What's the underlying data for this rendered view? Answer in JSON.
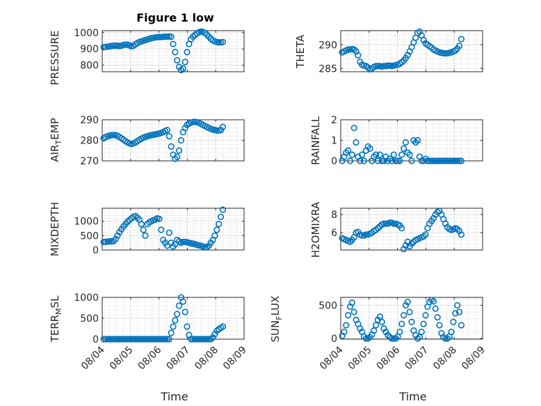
{
  "title": "Figure 1 low",
  "marker_color": "#0072bd",
  "chart_data": [
    {
      "type": "scatter",
      "ylabel": "PRESSURE",
      "yticks": [
        800,
        900,
        1000
      ],
      "ylim": [
        760,
        1012
      ],
      "xlim": [
        "08/04",
        "08/09"
      ],
      "x": [
        0.05,
        0.12,
        0.19,
        0.26,
        0.33,
        0.4,
        0.47,
        0.54,
        0.61,
        0.68,
        0.75,
        0.82,
        0.89,
        0.96,
        1.03,
        1.1,
        1.17,
        1.24,
        1.31,
        1.38,
        1.45,
        1.52,
        1.59,
        1.66,
        1.73,
        1.8,
        1.87,
        1.94,
        2.01,
        2.08,
        2.15,
        2.22,
        2.29,
        2.36,
        2.43,
        2.5,
        2.57,
        2.64,
        2.71,
        2.78,
        2.85,
        2.92,
        2.99,
        3.06,
        3.13,
        3.2,
        3.27,
        3.34,
        3.41,
        3.48,
        3.55,
        3.62,
        3.69,
        3.76,
        3.83,
        3.9,
        3.97,
        4.04,
        4.11,
        4.18,
        4.25
      ],
      "y": [
        910,
        912,
        914,
        916,
        918,
        920,
        920,
        919,
        918,
        920,
        924,
        926,
        926,
        922,
        916,
        920,
        928,
        936,
        942,
        946,
        950,
        954,
        958,
        962,
        966,
        968,
        970,
        972,
        973,
        972,
        974,
        975,
        975,
        976,
        974,
        930,
        880,
        830,
        790,
        770,
        780,
        820,
        880,
        930,
        960,
        975,
        985,
        995,
        1002,
        1006,
        1004,
        998,
        988,
        975,
        962,
        952,
        946,
        942,
        940,
        940,
        942
      ]
    },
    {
      "type": "scatter",
      "ylabel": "THETA",
      "yticks": [
        285,
        290
      ],
      "ylim": [
        284.3,
        293
      ],
      "xlim": [
        "08/04",
        "08/09"
      ],
      "x": [
        0.05,
        0.12,
        0.19,
        0.26,
        0.33,
        0.4,
        0.47,
        0.54,
        0.61,
        0.68,
        0.75,
        0.82,
        0.89,
        0.96,
        1.03,
        1.1,
        1.17,
        1.24,
        1.31,
        1.38,
        1.45,
        1.52,
        1.59,
        1.66,
        1.73,
        1.8,
        1.87,
        1.94,
        2.01,
        2.08,
        2.15,
        2.22,
        2.29,
        2.36,
        2.43,
        2.5,
        2.57,
        2.64,
        2.71,
        2.78,
        2.85,
        2.92,
        2.99,
        3.06,
        3.13,
        3.2,
        3.27,
        3.34,
        3.41,
        3.48,
        3.55,
        3.62,
        3.69,
        3.76,
        3.83,
        3.9,
        3.97,
        4.04,
        4.11,
        4.18,
        4.25
      ],
      "y": [
        288.4,
        288.6,
        288.8,
        289.0,
        289.0,
        289.1,
        289.0,
        288.6,
        287.8,
        286.4,
        285.8,
        285.6,
        285.5,
        285.2,
        284.8,
        285.0,
        285.3,
        285.5,
        285.5,
        285.5,
        285.4,
        285.5,
        285.5,
        285.6,
        285.6,
        285.5,
        285.6,
        285.7,
        285.8,
        286.0,
        286.3,
        286.7,
        287.2,
        287.8,
        288.6,
        289.5,
        290.5,
        291.5,
        292.5,
        292.8,
        292.0,
        291.0,
        290.3,
        290.0,
        289.7,
        289.4,
        289.0,
        288.8,
        288.6,
        288.4,
        288.3,
        288.2,
        288.2,
        288.2,
        288.3,
        288.4,
        288.6,
        288.8,
        289.2,
        289.8,
        291.2
      ]
    },
    {
      "type": "scatter",
      "ylabel": "AIR_TEMP",
      "yticks": [
        270,
        280,
        290
      ],
      "ylim": [
        270,
        290
      ],
      "xlim": [
        "08/04",
        "08/09"
      ],
      "x": [
        0.05,
        0.12,
        0.19,
        0.26,
        0.33,
        0.4,
        0.47,
        0.54,
        0.61,
        0.68,
        0.75,
        0.82,
        0.89,
        0.96,
        1.03,
        1.1,
        1.17,
        1.24,
        1.31,
        1.38,
        1.45,
        1.52,
        1.59,
        1.66,
        1.73,
        1.8,
        1.87,
        1.94,
        2.01,
        2.08,
        2.15,
        2.22,
        2.29,
        2.36,
        2.43,
        2.5,
        2.57,
        2.64,
        2.71,
        2.78,
        2.85,
        2.92,
        2.99,
        3.06,
        3.13,
        3.2,
        3.27,
        3.34,
        3.41,
        3.48,
        3.55,
        3.62,
        3.69,
        3.76,
        3.83,
        3.9,
        3.97,
        4.04,
        4.11,
        4.18,
        4.25
      ],
      "y": [
        281.0,
        281.6,
        282.0,
        282.3,
        282.5,
        282.6,
        282.5,
        282.2,
        281.6,
        281.0,
        280.3,
        279.6,
        279.0,
        278.5,
        278.2,
        278.5,
        279.0,
        279.6,
        280.2,
        280.8,
        281.3,
        281.7,
        282.0,
        282.3,
        282.5,
        282.7,
        282.9,
        283.1,
        283.3,
        283.6,
        284.0,
        284.5,
        285.0,
        282.0,
        277.0,
        273.0,
        271.0,
        272.0,
        275.0,
        280.0,
        284.0,
        286.0,
        287.5,
        288.2,
        288.6,
        288.9,
        289.0,
        288.8,
        288.5,
        288.0,
        287.5,
        287.0,
        286.5,
        286.0,
        285.6,
        285.2,
        285.0,
        284.8,
        284.8,
        285.0,
        286.5
      ]
    },
    {
      "type": "scatter",
      "ylabel": "RAINFALL",
      "yticks": [
        0,
        1,
        2
      ],
      "ylim": [
        0,
        2
      ],
      "xlim": [
        "08/04",
        "08/09"
      ],
      "x": [
        0.05,
        0.12,
        0.19,
        0.26,
        0.33,
        0.4,
        0.47,
        0.54,
        0.61,
        0.68,
        0.75,
        0.82,
        0.89,
        0.96,
        1.03,
        1.1,
        1.17,
        1.24,
        1.31,
        1.38,
        1.45,
        1.52,
        1.59,
        1.66,
        1.73,
        1.8,
        1.87,
        1.94,
        2.01,
        2.08,
        2.15,
        2.22,
        2.29,
        2.36,
        2.43,
        2.5,
        2.57,
        2.64,
        2.71,
        2.78,
        2.85,
        2.92,
        2.99,
        3.06,
        3.13,
        3.2,
        3.27,
        3.34,
        3.41,
        3.48,
        3.55,
        3.62,
        3.69,
        3.76,
        3.83,
        3.9,
        3.97,
        4.04,
        4.11,
        4.18,
        4.25
      ],
      "y": [
        0,
        0.2,
        0.4,
        0.5,
        0,
        0.3,
        1.6,
        0.9,
        0.2,
        0,
        0.3,
        0,
        0.5,
        0.7,
        0.6,
        0,
        0.2,
        0.3,
        0,
        0.3,
        0,
        0,
        0.2,
        0,
        0.1,
        0,
        0.3,
        0,
        0,
        0,
        0.3,
        0.6,
        0.9,
        0.4,
        0.3,
        0,
        1.0,
        0.9,
        1.0,
        0.2,
        0,
        0,
        0.1,
        0,
        0,
        0,
        0,
        0,
        0,
        0,
        0,
        0,
        0,
        0,
        0,
        0,
        0,
        0,
        0,
        0,
        0
      ]
    },
    {
      "type": "scatter",
      "ylabel": "MIXDEPTH",
      "yticks": [
        0,
        500,
        1000
      ],
      "ylim": [
        0,
        1450
      ],
      "xlim": [
        "08/04",
        "08/09"
      ],
      "x": [
        0.05,
        0.12,
        0.19,
        0.26,
        0.33,
        0.4,
        0.47,
        0.54,
        0.61,
        0.68,
        0.75,
        0.82,
        0.89,
        0.96,
        1.03,
        1.1,
        1.17,
        1.24,
        1.31,
        1.38,
        1.45,
        1.52,
        1.59,
        1.66,
        1.73,
        1.8,
        1.87,
        1.94,
        2.01,
        2.08,
        2.15,
        2.22,
        2.29,
        2.36,
        2.43,
        2.5,
        2.57,
        2.64,
        2.71,
        2.78,
        2.85,
        2.92,
        2.99,
        3.06,
        3.13,
        3.2,
        3.27,
        3.34,
        3.41,
        3.48,
        3.55,
        3.62,
        3.69,
        3.76,
        3.83,
        3.9,
        3.97,
        4.04,
        4.11,
        4.18,
        4.25
      ],
      "y": [
        280,
        280,
        290,
        300,
        300,
        310,
        380,
        500,
        620,
        720,
        820,
        900,
        980,
        1040,
        1100,
        1150,
        1180,
        1120,
        1050,
        900,
        700,
        500,
        900,
        960,
        1000,
        1030,
        1060,
        1100,
        1080,
        700,
        350,
        250,
        150,
        600,
        250,
        120,
        200,
        350,
        300,
        250,
        280,
        280,
        270,
        250,
        230,
        220,
        200,
        180,
        160,
        150,
        120,
        100,
        90,
        150,
        250,
        350,
        500,
        700,
        900,
        1150,
        1400
      ]
    },
    {
      "type": "scatter",
      "ylabel": "H2OMIXRA",
      "yticks": [
        6,
        8
      ],
      "ylim": [
        4.1,
        8.7
      ],
      "xlim": [
        "08/04",
        "08/09"
      ],
      "x": [
        0.05,
        0.12,
        0.19,
        0.26,
        0.33,
        0.4,
        0.47,
        0.54,
        0.61,
        0.68,
        0.75,
        0.82,
        0.89,
        0.96,
        1.03,
        1.1,
        1.17,
        1.24,
        1.31,
        1.38,
        1.45,
        1.52,
        1.59,
        1.66,
        1.73,
        1.8,
        1.87,
        1.94,
        2.01,
        2.08,
        2.15,
        2.22,
        2.29,
        2.36,
        2.43,
        2.5,
        2.57,
        2.64,
        2.71,
        2.78,
        2.85,
        2.92,
        2.99,
        3.06,
        3.13,
        3.2,
        3.27,
        3.34,
        3.41,
        3.48,
        3.55,
        3.62,
        3.69,
        3.76,
        3.83,
        3.9,
        3.97,
        4.04,
        4.11,
        4.18,
        4.25
      ],
      "y": [
        5.4,
        5.3,
        5.2,
        5.1,
        5.0,
        5.2,
        5.5,
        6.0,
        6.1,
        5.8,
        5.7,
        5.7,
        5.8,
        5.8,
        5.9,
        6.0,
        6.2,
        6.3,
        6.5,
        6.7,
        6.9,
        7.0,
        7.0,
        7.0,
        7.1,
        7.1,
        7.0,
        7.0,
        6.9,
        6.8,
        6.5,
        4.2,
        4.6,
        5.0,
        4.5,
        4.8,
        5.0,
        5.2,
        5.3,
        5.4,
        5.5,
        5.6,
        5.8,
        6.5,
        7.0,
        7.3,
        7.6,
        8.0,
        8.3,
        8.4,
        8.0,
        7.5,
        7.0,
        6.6,
        6.4,
        6.3,
        6.4,
        6.5,
        6.4,
        6.2,
        5.8
      ]
    },
    {
      "type": "scatter",
      "ylabel": "TERR_MSL",
      "yticks": [
        0,
        500,
        1000
      ],
      "ylim": [
        0,
        1000
      ],
      "xlim": [
        "08/04",
        "08/09"
      ],
      "x": [
        0.05,
        0.12,
        0.19,
        0.26,
        0.33,
        0.4,
        0.47,
        0.54,
        0.61,
        0.68,
        0.75,
        0.82,
        0.89,
        0.96,
        1.03,
        1.1,
        1.17,
        1.24,
        1.31,
        1.38,
        1.45,
        1.52,
        1.59,
        1.66,
        1.73,
        1.8,
        1.87,
        1.94,
        2.01,
        2.08,
        2.15,
        2.22,
        2.29,
        2.36,
        2.43,
        2.5,
        2.57,
        2.64,
        2.71,
        2.78,
        2.85,
        2.92,
        2.99,
        3.06,
        3.13,
        3.2,
        3.27,
        3.34,
        3.41,
        3.48,
        3.55,
        3.62,
        3.69,
        3.76,
        3.83,
        3.9,
        3.97,
        4.04,
        4.11,
        4.18,
        4.25
      ],
      "y": [
        0,
        0,
        0,
        0,
        0,
        0,
        0,
        0,
        0,
        0,
        0,
        0,
        0,
        0,
        0,
        0,
        0,
        0,
        0,
        0,
        0,
        0,
        0,
        0,
        0,
        0,
        0,
        0,
        0,
        0,
        0,
        0,
        0,
        0,
        150,
        300,
        450,
        600,
        800,
        1000,
        900,
        650,
        300,
        100,
        0,
        0,
        0,
        0,
        0,
        0,
        0,
        0,
        0,
        0,
        0,
        40,
        120,
        200,
        240,
        270,
        300
      ]
    },
    {
      "type": "scatter",
      "ylabel": "SUN_FLUX",
      "yticks": [
        0,
        500
      ],
      "ylim": [
        -10,
        620
      ],
      "xlim": [
        "08/04",
        "08/09"
      ],
      "x": [
        0.05,
        0.12,
        0.19,
        0.26,
        0.33,
        0.4,
        0.47,
        0.54,
        0.61,
        0.68,
        0.75,
        0.82,
        0.89,
        0.96,
        1.03,
        1.1,
        1.17,
        1.24,
        1.31,
        1.38,
        1.45,
        1.52,
        1.59,
        1.66,
        1.73,
        1.8,
        1.87,
        1.94,
        2.01,
        2.08,
        2.15,
        2.22,
        2.29,
        2.36,
        2.43,
        2.5,
        2.57,
        2.64,
        2.71,
        2.78,
        2.85,
        2.92,
        2.99,
        3.06,
        3.13,
        3.2,
        3.27,
        3.34,
        3.41,
        3.48,
        3.55,
        3.62,
        3.69,
        3.76,
        3.83,
        3.9,
        3.97,
        4.04,
        4.11,
        4.18,
        4.25
      ],
      "y": [
        40,
        100,
        200,
        350,
        480,
        540,
        400,
        280,
        220,
        150,
        100,
        30,
        0,
        0,
        20,
        60,
        120,
        200,
        280,
        330,
        250,
        150,
        100,
        50,
        20,
        0,
        0,
        0,
        30,
        100,
        220,
        350,
        500,
        550,
        400,
        250,
        120,
        50,
        0,
        20,
        100,
        220,
        350,
        480,
        550,
        580,
        560,
        450,
        320,
        200,
        80,
        20,
        0,
        0,
        30,
        100,
        250,
        380,
        500,
        400,
        200
      ]
    }
  ],
  "xticks": [
    "08/04",
    "08/05",
    "08/06",
    "08/07",
    "08/08",
    "08/09"
  ],
  "xlabel": "Time"
}
